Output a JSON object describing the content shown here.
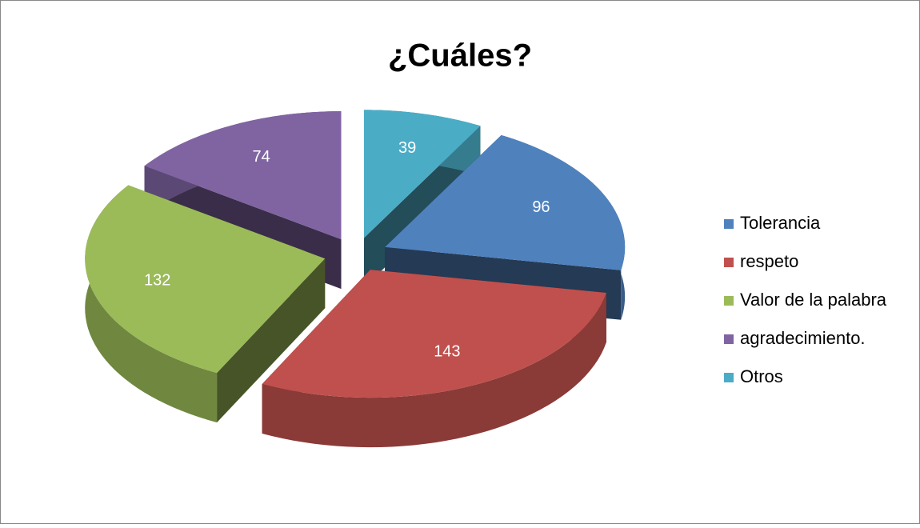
{
  "chart_data": {
    "type": "pie3d",
    "title": "¿Cuáles?",
    "categories": [
      "Tolerancia",
      "respeto",
      "Valor de la palabra",
      "agradecimiento.",
      "Otros"
    ],
    "values": [
      96,
      143,
      132,
      74,
      39
    ],
    "colors": [
      "#4f81bd",
      "#c0504d",
      "#9bbb59",
      "#8064a2",
      "#4bacc6"
    ],
    "legend": "right"
  }
}
